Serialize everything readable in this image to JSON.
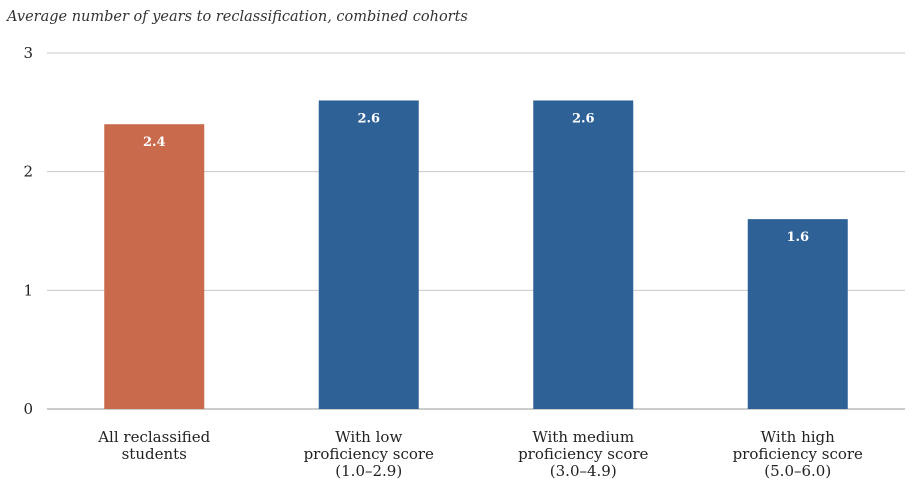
{
  "chart_data": {
    "type": "bar",
    "title": "Average number of years to reclassification, combined cohorts",
    "xlabel": "",
    "ylabel": "",
    "ylim": [
      0,
      3
    ],
    "yticks": [
      0,
      1,
      2,
      3
    ],
    "grid": true,
    "categories": [
      [
        "All reclassified",
        "students"
      ],
      [
        "With low",
        "proficiency score",
        "(1.0–2.9)"
      ],
      [
        "With medium",
        "proficiency score",
        "(3.0–4.9)"
      ],
      [
        "With high",
        "proficiency score",
        "(5.0–6.0)"
      ]
    ],
    "values": [
      2.4,
      2.6,
      2.6,
      1.6
    ],
    "data_labels": [
      "2.4",
      "2.6",
      "2.6",
      "1.6"
    ],
    "colors": [
      "#C96A4C",
      "#2E6196",
      "#2E6196",
      "#2E6196"
    ]
  }
}
